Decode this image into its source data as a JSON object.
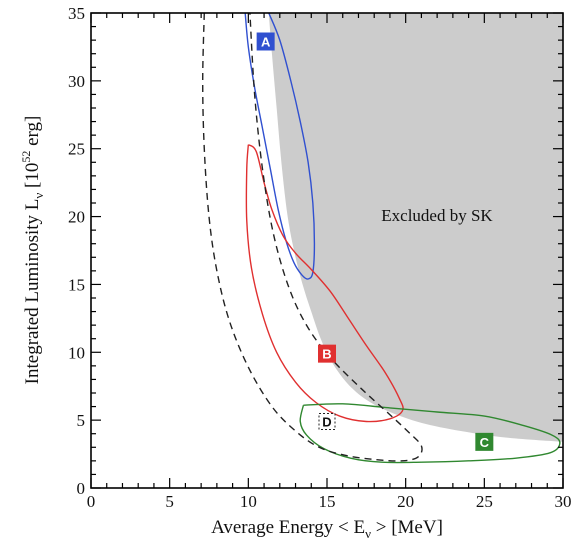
{
  "chart_data": {
    "type": "contour",
    "xlabel": "Average Energy  < E",
    "xlabel_sub": "ν",
    "xlabel_tail": " >   [MeV]",
    "ylabel": "Integrated Luminosity   L",
    "ylabel_sub": "ν",
    "ylabel_unit_pre": "   [10",
    "ylabel_unit_sup": "52",
    "ylabel_unit_post": " erg]",
    "xlim": [
      0,
      30
    ],
    "ylim": [
      0,
      35
    ],
    "x_ticks": [
      0,
      5,
      10,
      15,
      20,
      25,
      30
    ],
    "y_ticks": [
      0,
      5,
      10,
      15,
      20,
      25,
      30,
      35
    ],
    "x_minor_step": 1,
    "y_minor_step": 1,
    "grid": false,
    "annotation": "Excluded by SK",
    "excluded_region": {
      "fill": "#cccccc",
      "boundary": [
        [
          11.3,
          35
        ],
        [
          11.5,
          32
        ],
        [
          11.8,
          28
        ],
        [
          12.1,
          24
        ],
        [
          12.5,
          20
        ],
        [
          13,
          17
        ],
        [
          13.5,
          14.8
        ],
        [
          14,
          13
        ],
        [
          14.6,
          11
        ],
        [
          15.3,
          9.3
        ],
        [
          16.3,
          7.7
        ],
        [
          17.5,
          6.5
        ],
        [
          19,
          5.6
        ],
        [
          21,
          4.8
        ],
        [
          23.5,
          4.2
        ],
        [
          26.5,
          3.7
        ],
        [
          30,
          3.4
        ]
      ]
    },
    "contours": [
      {
        "label": "A",
        "color": "#3050d0",
        "badge_text_color": "#ffffff",
        "label_pos": [
          11.1,
          32.9
        ],
        "points": [
          [
            9.8,
            35
          ],
          [
            10,
            32.5
          ],
          [
            10.4,
            29.5
          ],
          [
            10.9,
            26.5
          ],
          [
            11.4,
            23.5
          ],
          [
            11.9,
            20.5
          ],
          [
            12.4,
            18.2
          ],
          [
            12.9,
            16.6
          ],
          [
            13.4,
            15.7
          ],
          [
            13.8,
            15.4
          ],
          [
            14.1,
            15.9
          ],
          [
            14.2,
            18
          ],
          [
            14.1,
            21
          ],
          [
            13.8,
            24
          ],
          [
            13.3,
            27
          ],
          [
            12.7,
            30
          ],
          [
            12,
            33
          ],
          [
            11.3,
            35
          ]
        ]
      },
      {
        "label": "B",
        "color": "#e03030",
        "badge_text_color": "#ffffff",
        "label_pos": [
          15.0,
          9.9
        ],
        "points": [
          [
            10,
            25.3
          ],
          [
            10.5,
            24.8
          ],
          [
            11,
            22.5
          ],
          [
            11.5,
            20.5
          ],
          [
            12.2,
            18.6
          ],
          [
            13,
            17.3
          ],
          [
            14,
            16.1
          ],
          [
            15.2,
            14.5
          ],
          [
            16.3,
            12.6
          ],
          [
            17.5,
            10.5
          ],
          [
            18.7,
            8.5
          ],
          [
            19.6,
            6.6
          ],
          [
            19.8,
            5.7
          ],
          [
            19,
            5.1
          ],
          [
            17.5,
            4.9
          ],
          [
            15.8,
            5.3
          ],
          [
            14.3,
            6.3
          ],
          [
            13,
            7.8
          ],
          [
            11.8,
            10
          ],
          [
            10.9,
            12.8
          ],
          [
            10.2,
            16.2
          ],
          [
            9.9,
            19.7
          ],
          [
            9.9,
            23.5
          ],
          [
            10,
            25.3
          ]
        ]
      },
      {
        "label": "C",
        "color": "#308830",
        "badge_text_color": "#ffffff",
        "label_pos": [
          25.0,
          3.4
        ],
        "points": [
          [
            13.5,
            6.1
          ],
          [
            16,
            6.2
          ],
          [
            19,
            5.9
          ],
          [
            22,
            5.6
          ],
          [
            25,
            5.3
          ],
          [
            27.5,
            4.6
          ],
          [
            29.3,
            3.9
          ],
          [
            29.8,
            3.3
          ],
          [
            29.2,
            2.6
          ],
          [
            27,
            2.2
          ],
          [
            24,
            2.0
          ],
          [
            21,
            1.9
          ],
          [
            18.5,
            1.9
          ],
          [
            16.5,
            2.2
          ],
          [
            14.8,
            2.9
          ],
          [
            13.7,
            3.9
          ],
          [
            13.3,
            4.9
          ],
          [
            13.5,
            6.1
          ]
        ]
      },
      {
        "label": "D",
        "color": "#222222",
        "badge_text_color": "#111111",
        "label_pos": [
          15.0,
          4.9
        ],
        "dashed": true,
        "points": [
          [
            7.2,
            35
          ],
          [
            7.1,
            30
          ],
          [
            7.2,
            25
          ],
          [
            7.5,
            20
          ],
          [
            8,
            16
          ],
          [
            8.8,
            12.3
          ],
          [
            10,
            8.9
          ],
          [
            11.5,
            6
          ],
          [
            13,
            4.2
          ],
          [
            14.5,
            3.0
          ],
          [
            16.2,
            2.4
          ],
          [
            18,
            2.1
          ],
          [
            19.8,
            2.0
          ],
          [
            20.8,
            2.3
          ],
          [
            21,
            3.1
          ],
          [
            20.2,
            4.1
          ],
          [
            19,
            5.4
          ],
          [
            17.2,
            7.3
          ],
          [
            15.3,
            9.5
          ],
          [
            13.8,
            11.8
          ],
          [
            12.6,
            14.7
          ],
          [
            11.6,
            18.7
          ],
          [
            10.9,
            23.5
          ],
          [
            10.4,
            29
          ],
          [
            10.1,
            35
          ]
        ]
      }
    ]
  }
}
